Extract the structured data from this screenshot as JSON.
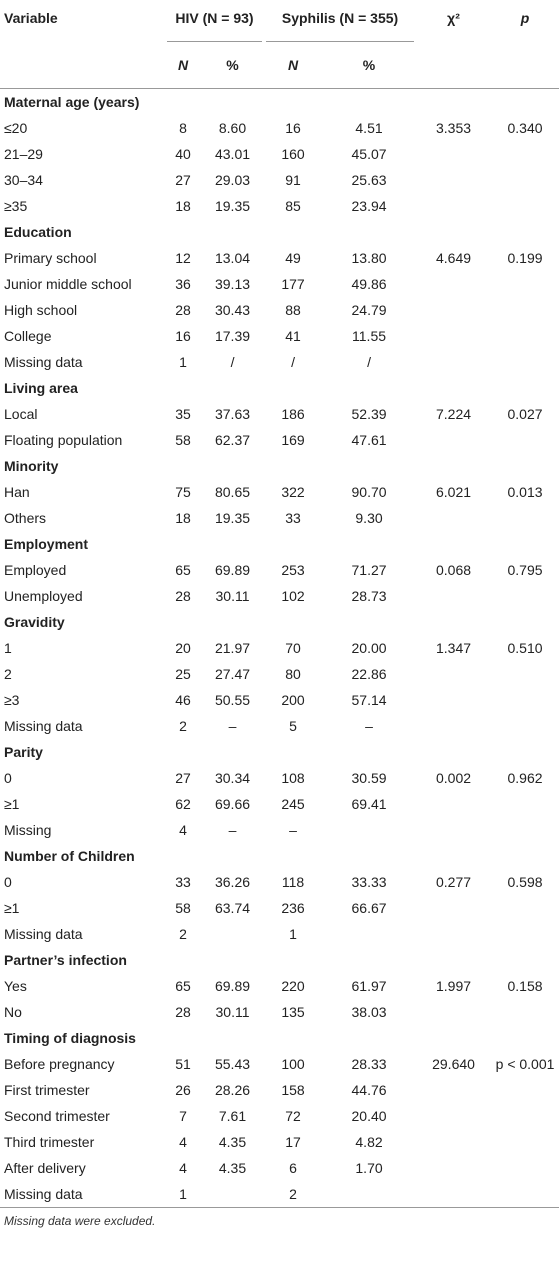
{
  "table": {
    "header": [
      "Variable",
      "HIV (N = 93)",
      "Syphilis (N = 355)",
      "χ²",
      "p"
    ],
    "subheader": [
      "N",
      "%",
      "N",
      "%"
    ],
    "rows": [
      [
        "Maternal age (years)"
      ],
      [
        "≤20",
        "8",
        "8.60",
        "16",
        "4.51",
        "3.353",
        "0.340"
      ],
      [
        "21–29",
        "40",
        "43.01",
        "160",
        "45.07",
        null,
        null
      ],
      [
        "30–34",
        "27",
        "29.03",
        "91",
        "25.63",
        null,
        null
      ],
      [
        "≥35",
        "18",
        "19.35",
        "85",
        "23.94",
        null,
        null
      ],
      [
        "Education"
      ],
      [
        "Primary school",
        "12",
        "13.04",
        "49",
        "13.80",
        "4.649",
        "0.199"
      ],
      [
        "Junior middle school",
        "36",
        "39.13",
        "177",
        "49.86",
        null,
        null
      ],
      [
        "High school",
        "28",
        "30.43",
        "88",
        "24.79",
        null,
        null
      ],
      [
        "College",
        "16",
        "17.39",
        "41",
        "11.55",
        null,
        null
      ],
      [
        "Missing data",
        "1",
        "/",
        "/",
        "/",
        null,
        null
      ],
      [
        "Living area"
      ],
      [
        "Local",
        "35",
        "37.63",
        "186",
        "52.39",
        "7.224",
        "0.027"
      ],
      [
        "Floating population",
        "58",
        "62.37",
        "169",
        "47.61",
        null,
        null
      ],
      [
        "Minority"
      ],
      [
        "Han",
        "75",
        "80.65",
        "322",
        "90.70",
        "6.021",
        "0.013"
      ],
      [
        "Others",
        "18",
        "19.35",
        "33",
        "9.30",
        null,
        null
      ],
      [
        "Employment"
      ],
      [
        "Employed",
        "65",
        "69.89",
        "253",
        "71.27",
        "0.068",
        "0.795"
      ],
      [
        "Unemployed",
        "28",
        "30.11",
        "102",
        "28.73",
        null,
        null
      ],
      [
        "Gravidity"
      ],
      [
        "1",
        "20",
        "21.97",
        "70",
        "20.00",
        "1.347",
        "0.510"
      ],
      [
        "2",
        "25",
        "27.47",
        "80",
        "22.86",
        null,
        null
      ],
      [
        "≥3",
        "46",
        "50.55",
        "200",
        "57.14",
        null,
        null
      ],
      [
        "Missing data",
        "2",
        "–",
        "5",
        "–",
        null,
        null
      ],
      [
        "Parity"
      ],
      [
        "0",
        "27",
        "30.34",
        "108",
        "30.59",
        "0.002",
        "0.962"
      ],
      [
        "≥1",
        "62",
        "69.66",
        "245",
        "69.41",
        null,
        null
      ],
      [
        "Missing",
        "4",
        "–",
        "–",
        null,
        null,
        null
      ],
      [
        "Number of Children"
      ],
      [
        "0",
        "33",
        "36.26",
        "118",
        "33.33",
        "0.277",
        "0.598"
      ],
      [
        "≥1",
        "58",
        "63.74",
        "236",
        "66.67",
        null,
        null
      ],
      [
        "Missing data",
        "2",
        null,
        "1",
        null,
        null,
        null
      ],
      [
        "Partner’s infection"
      ],
      [
        "Yes",
        "65",
        "69.89",
        "220",
        "61.97",
        "1.997",
        "0.158"
      ],
      [
        "No",
        "28",
        "30.11",
        "135",
        "38.03",
        null,
        null
      ],
      [
        "Timing of diagnosis"
      ],
      [
        "Before pregnancy",
        "51",
        "55.43",
        "100",
        "28.33",
        "29.640",
        "p < 0.001"
      ],
      [
        "First trimester",
        "26",
        "28.26",
        "158",
        "44.76",
        null,
        null
      ],
      [
        "Second trimester",
        "7",
        "7.61",
        "72",
        "20.40",
        null,
        null
      ],
      [
        "Third trimester",
        "4",
        "4.35",
        "17",
        "4.82",
        null,
        null
      ],
      [
        "After delivery",
        "4",
        "4.35",
        "6",
        "1.70",
        null,
        null
      ],
      [
        "Missing data",
        "1",
        null,
        "2",
        null,
        null,
        null
      ]
    ],
    "footnote": "Missing data were excluded."
  }
}
